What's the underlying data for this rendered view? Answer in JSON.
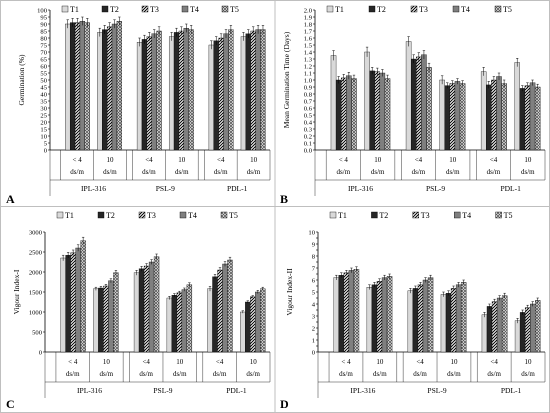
{
  "legend": [
    "T1",
    "T2",
    "T3",
    "T4",
    "T5"
  ],
  "patterns": {
    "T1": {
      "fill": "#d9d9d9"
    },
    "T2": {
      "fill": "#262626"
    },
    "T3": {
      "hatch": "diag",
      "bg": "#ffffff",
      "fg": "#000000"
    },
    "T4": {
      "fill": "#7f7f7f"
    },
    "T5": {
      "hatch": "cross",
      "bg": "#ffffff",
      "fg": "#555555"
    }
  },
  "chart_data": [
    {
      "type": "bar",
      "panel": "A",
      "ylabel": "Germination (%)",
      "ylim": [
        0,
        100
      ],
      "ytick_step": 5,
      "ytick_decimals": 0,
      "groups": [
        "IPL-316",
        "PSL-9",
        "PDL-1"
      ],
      "subgroups": [
        [
          "< 4",
          "ds/m"
        ],
        [
          "10",
          "ds/m"
        ],
        [
          "<4",
          "ds/m"
        ],
        [
          "10",
          "ds/m"
        ],
        [
          "<4",
          "ds/m"
        ],
        [
          "10",
          "ds/m"
        ]
      ],
      "series": [
        {
          "name": "T1",
          "values": [
            90,
            84,
            77,
            81,
            75,
            81
          ],
          "errors": [
            3,
            3,
            3,
            3,
            3,
            3
          ]
        },
        {
          "name": "T2",
          "values": [
            91,
            86,
            79,
            84,
            78,
            83
          ],
          "errors": [
            3,
            3,
            3,
            3,
            3,
            3
          ]
        },
        {
          "name": "T3",
          "values": [
            91,
            88,
            81,
            85,
            80,
            85
          ],
          "errors": [
            3,
            3,
            3,
            3,
            3,
            3
          ]
        },
        {
          "name": "T4",
          "values": [
            92,
            90,
            83,
            87,
            83,
            86
          ],
          "errors": [
            3,
            3,
            3,
            3,
            3,
            3
          ]
        },
        {
          "name": "T5",
          "values": [
            91,
            92,
            85,
            86,
            86,
            86
          ],
          "errors": [
            3,
            3,
            3,
            3,
            3,
            3
          ]
        }
      ]
    },
    {
      "type": "bar",
      "panel": "B",
      "ylabel": "Mean Germination Time (Days)",
      "ylim": [
        0,
        2.0
      ],
      "ytick_step": 0.1,
      "ytick_decimals": 1,
      "groups": [
        "IPL-316",
        "PSL-9",
        "PDL-1"
      ],
      "subgroups": [
        [
          "< 4",
          "ds/m"
        ],
        [
          "10",
          "ds/m"
        ],
        [
          "<4",
          "ds/m"
        ],
        [
          "10",
          "ds/m"
        ],
        [
          "<4",
          "ds/m"
        ],
        [
          "10",
          "ds/m"
        ]
      ],
      "series": [
        {
          "name": "T1",
          "values": [
            1.35,
            1.4,
            1.55,
            1.0,
            1.12,
            1.25
          ],
          "errors": [
            0.07,
            0.07,
            0.07,
            0.06,
            0.06,
            0.06
          ]
        },
        {
          "name": "T2",
          "values": [
            1.0,
            1.13,
            1.3,
            0.92,
            0.93,
            0.88
          ],
          "errors": [
            0.05,
            0.05,
            0.06,
            0.04,
            0.05,
            0.04
          ]
        },
        {
          "name": "T3",
          "values": [
            1.03,
            1.12,
            1.33,
            0.95,
            1.0,
            0.92
          ],
          "errors": [
            0.05,
            0.05,
            0.06,
            0.04,
            0.05,
            0.04
          ]
        },
        {
          "name": "T4",
          "values": [
            1.06,
            1.1,
            1.36,
            0.98,
            1.05,
            0.96
          ],
          "errors": [
            0.05,
            0.05,
            0.06,
            0.04,
            0.05,
            0.04
          ]
        },
        {
          "name": "T5",
          "values": [
            1.02,
            1.02,
            1.18,
            0.95,
            0.95,
            0.9
          ],
          "errors": [
            0.05,
            0.05,
            0.06,
            0.04,
            0.05,
            0.04
          ]
        }
      ]
    },
    {
      "type": "bar",
      "panel": "C",
      "ylabel": "Vigour Index-I",
      "ylim": [
        0,
        3000
      ],
      "ytick_step": 500,
      "ytick_decimals": 0,
      "groups": [
        "IPL-316",
        "PSL-9",
        "PDL-1"
      ],
      "subgroups": [
        [
          "< 4",
          "ds/m"
        ],
        [
          "10",
          "ds/m"
        ],
        [
          "<4",
          "ds/m"
        ],
        [
          "10",
          "ds/m"
        ],
        [
          "<4",
          "ds/m"
        ],
        [
          "10",
          "ds/m"
        ]
      ],
      "series": [
        {
          "name": "T1",
          "values": [
            2350,
            1580,
            1980,
            1350,
            1580,
            1000
          ],
          "errors": [
            70,
            40,
            60,
            40,
            60,
            30
          ]
        },
        {
          "name": "T2",
          "values": [
            2420,
            1600,
            2080,
            1420,
            1880,
            1250
          ],
          "errors": [
            70,
            40,
            60,
            40,
            60,
            30
          ]
        },
        {
          "name": "T3",
          "values": [
            2480,
            1650,
            2150,
            1480,
            2050,
            1380
          ],
          "errors": [
            70,
            40,
            60,
            40,
            60,
            30
          ]
        },
        {
          "name": "T4",
          "values": [
            2600,
            1780,
            2250,
            1560,
            2200,
            1500
          ],
          "errors": [
            80,
            50,
            60,
            40,
            60,
            40
          ]
        },
        {
          "name": "T5",
          "values": [
            2780,
            1980,
            2380,
            1680,
            2300,
            1580
          ],
          "errors": [
            90,
            60,
            70,
            50,
            70,
            40
          ]
        }
      ]
    },
    {
      "type": "bar",
      "panel": "D",
      "ylabel": "Vigour Index-II",
      "ylim": [
        0,
        10
      ],
      "ytick_step": 0.5,
      "ytick_decimals": 0,
      "ytick_integers_only": true,
      "groups": [
        "IPL-316",
        "PSL-9",
        "PDL-1"
      ],
      "subgroups": [
        [
          "< 4",
          "ds/m"
        ],
        [
          "10",
          "ds/m"
        ],
        [
          "<4",
          "ds/m"
        ],
        [
          "10",
          "ds/m"
        ],
        [
          "<4",
          "ds/m"
        ],
        [
          "10",
          "ds/m"
        ]
      ],
      "series": [
        {
          "name": "T1",
          "values": [
            6.2,
            5.4,
            5.1,
            4.8,
            3.1,
            2.6
          ],
          "errors": [
            0.2,
            0.2,
            0.2,
            0.2,
            0.2,
            0.2
          ]
        },
        {
          "name": "T2",
          "values": [
            6.4,
            5.6,
            5.3,
            4.9,
            3.8,
            3.3
          ],
          "errors": [
            0.2,
            0.2,
            0.2,
            0.2,
            0.2,
            0.2
          ]
        },
        {
          "name": "T3",
          "values": [
            6.6,
            5.9,
            5.6,
            5.3,
            4.2,
            3.7
          ],
          "errors": [
            0.2,
            0.2,
            0.2,
            0.2,
            0.2,
            0.2
          ]
        },
        {
          "name": "T4",
          "values": [
            6.8,
            6.2,
            6.0,
            5.6,
            4.5,
            4.0
          ],
          "errors": [
            0.2,
            0.2,
            0.2,
            0.2,
            0.2,
            0.2
          ]
        },
        {
          "name": "T5",
          "values": [
            6.9,
            6.3,
            6.2,
            5.8,
            4.7,
            4.3
          ],
          "errors": [
            0.2,
            0.2,
            0.2,
            0.2,
            0.2,
            0.2
          ]
        }
      ]
    }
  ]
}
